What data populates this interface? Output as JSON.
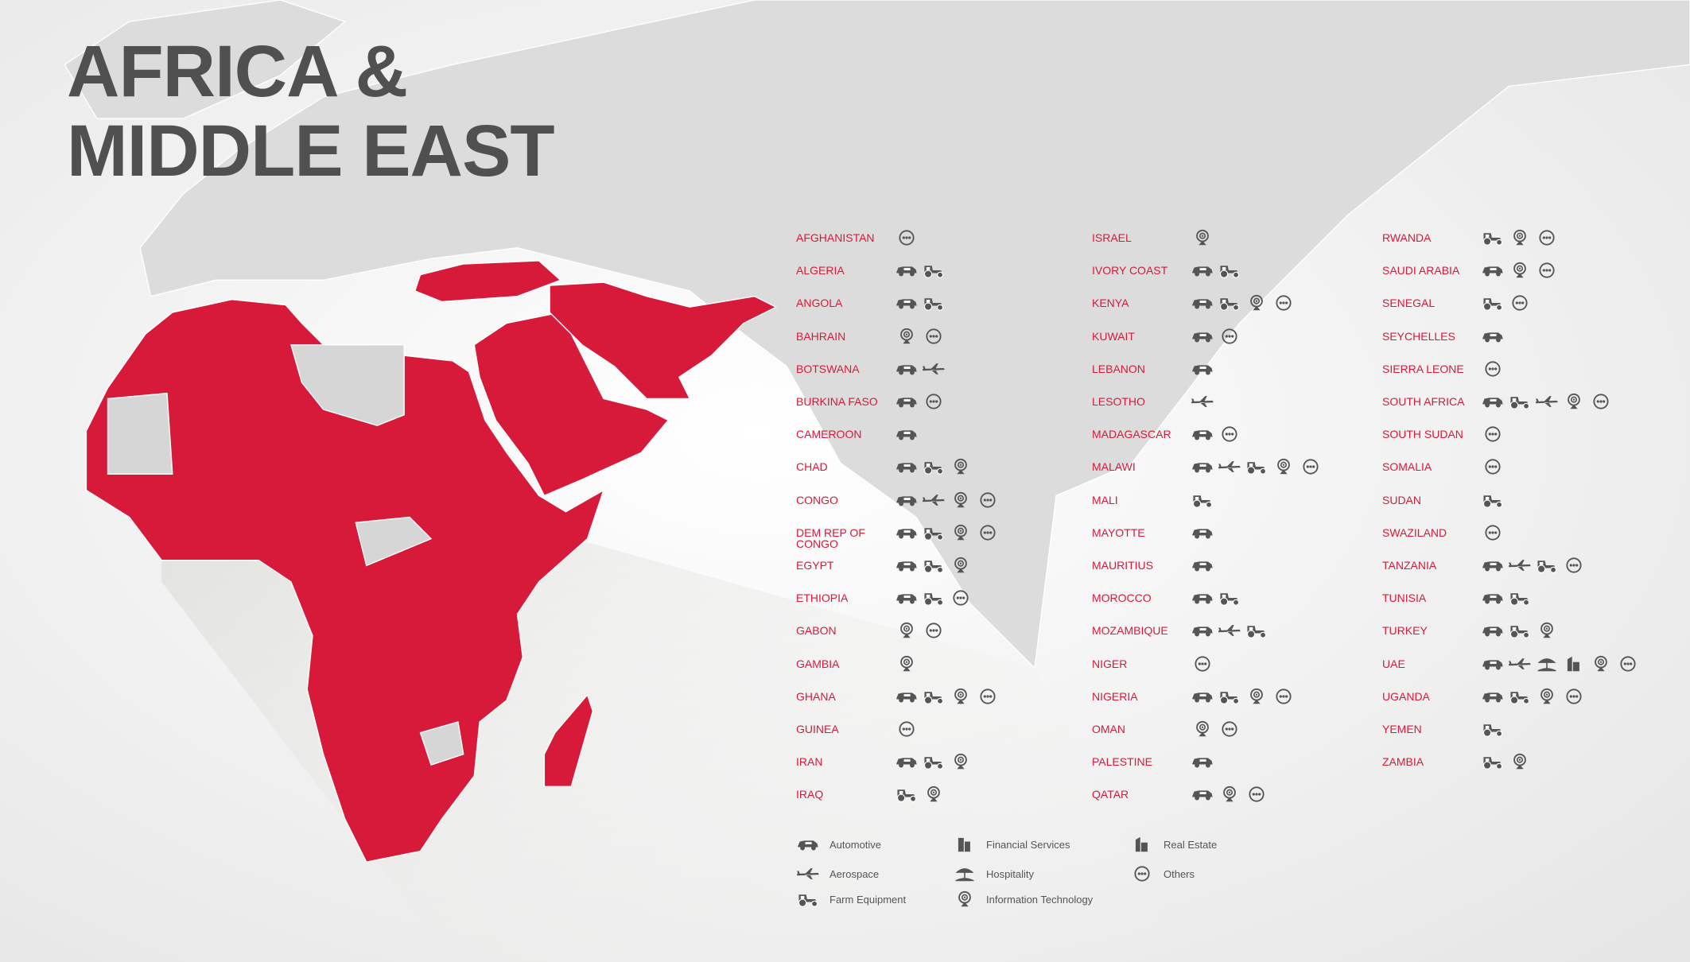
{
  "header": {
    "title_lines": [
      "AFRICA &",
      "MIDDLE EAST"
    ]
  },
  "legend": [
    "Automotive",
    "Aerospace",
    "Farm Equipment",
    "Financial Services",
    "Hospitality",
    "Information Technology",
    "Real Estate",
    "Others"
  ],
  "columns": [
    [
      {
        "name": "AFGHANISTAN",
        "sectors": [
          "Others"
        ]
      },
      {
        "name": "ALGERIA",
        "sectors": [
          "Automotive",
          "Farm Equipment"
        ]
      },
      {
        "name": "ANGOLA",
        "sectors": [
          "Automotive",
          "Farm Equipment"
        ]
      },
      {
        "name": "BAHRAIN",
        "sectors": [
          "Information Technology",
          "Others"
        ]
      },
      {
        "name": "BOTSWANA",
        "sectors": [
          "Automotive",
          "Aerospace"
        ]
      },
      {
        "name": "BURKINA FASO",
        "sectors": [
          "Automotive",
          "Others"
        ]
      },
      {
        "name": "CAMEROON",
        "sectors": [
          "Automotive"
        ]
      },
      {
        "name": "CHAD",
        "sectors": [
          "Automotive",
          "Farm Equipment",
          "Information Technology"
        ]
      },
      {
        "name": "CONGO",
        "sectors": [
          "Automotive",
          "Aerospace",
          "Information Technology",
          "Others"
        ]
      },
      {
        "name": "DEM REP OF CONGO",
        "sectors": [
          "Automotive",
          "Farm Equipment",
          "Information Technology",
          "Others"
        ]
      },
      {
        "name": "EGYPT",
        "sectors": [
          "Automotive",
          "Farm Equipment",
          "Information Technology"
        ]
      },
      {
        "name": "ETHIOPIA",
        "sectors": [
          "Automotive",
          "Farm Equipment",
          "Others"
        ]
      },
      {
        "name": "GABON",
        "sectors": [
          "Information Technology",
          "Others"
        ]
      },
      {
        "name": "GAMBIA",
        "sectors": [
          "Information Technology"
        ]
      },
      {
        "name": "GHANA",
        "sectors": [
          "Automotive",
          "Farm Equipment",
          "Information Technology",
          "Others"
        ]
      },
      {
        "name": "GUINEA",
        "sectors": [
          "Others"
        ]
      },
      {
        "name": "IRAN",
        "sectors": [
          "Automotive",
          "Farm Equipment",
          "Information Technology"
        ]
      },
      {
        "name": "IRAQ",
        "sectors": [
          "Farm Equipment",
          "Information Technology"
        ]
      }
    ],
    [
      {
        "name": "ISRAEL",
        "sectors": [
          "Information Technology"
        ]
      },
      {
        "name": "IVORY COAST",
        "sectors": [
          "Automotive",
          "Farm Equipment"
        ]
      },
      {
        "name": "KENYA",
        "sectors": [
          "Automotive",
          "Farm Equipment",
          "Information Technology",
          "Others"
        ]
      },
      {
        "name": "KUWAIT",
        "sectors": [
          "Automotive",
          "Others"
        ]
      },
      {
        "name": "LEBANON",
        "sectors": [
          "Automotive"
        ]
      },
      {
        "name": "LESOTHO",
        "sectors": [
          "Aerospace"
        ]
      },
      {
        "name": "MADAGASCAR",
        "sectors": [
          "Automotive",
          "Others"
        ]
      },
      {
        "name": "MALAWI",
        "sectors": [
          "Automotive",
          "Aerospace",
          "Farm Equipment",
          "Information Technology",
          "Others"
        ]
      },
      {
        "name": "MALI",
        "sectors": [
          "Farm Equipment"
        ]
      },
      {
        "name": "MAYOTTE",
        "sectors": [
          "Automotive"
        ]
      },
      {
        "name": "MAURITIUS",
        "sectors": [
          "Automotive"
        ]
      },
      {
        "name": "MOROCCO",
        "sectors": [
          "Automotive",
          "Farm Equipment"
        ]
      },
      {
        "name": "MOZAMBIQUE",
        "sectors": [
          "Automotive",
          "Aerospace",
          "Farm Equipment"
        ]
      },
      {
        "name": "NIGER",
        "sectors": [
          "Others"
        ]
      },
      {
        "name": "NIGERIA",
        "sectors": [
          "Automotive",
          "Farm Equipment",
          "Information Technology",
          "Others"
        ]
      },
      {
        "name": "OMAN",
        "sectors": [
          "Information Technology",
          "Others"
        ]
      },
      {
        "name": "PALESTINE",
        "sectors": [
          "Automotive"
        ]
      },
      {
        "name": "QATAR",
        "sectors": [
          "Automotive",
          "Information Technology",
          "Others"
        ]
      }
    ],
    [
      {
        "name": "RWANDA",
        "sectors": [
          "Farm Equipment",
          "Information Technology",
          "Others"
        ]
      },
      {
        "name": "SAUDI ARABIA",
        "sectors": [
          "Automotive",
          "Information Technology",
          "Others"
        ]
      },
      {
        "name": "SENEGAL",
        "sectors": [
          "Farm Equipment",
          "Others"
        ]
      },
      {
        "name": "SEYCHELLES",
        "sectors": [
          "Automotive"
        ]
      },
      {
        "name": "SIERRA LEONE",
        "sectors": [
          "Others"
        ]
      },
      {
        "name": "SOUTH AFRICA",
        "sectors": [
          "Automotive",
          "Farm Equipment",
          "Aerospace",
          "Information Technology",
          "Others"
        ]
      },
      {
        "name": "SOUTH SUDAN",
        "sectors": [
          "Others"
        ]
      },
      {
        "name": "SOMALIA",
        "sectors": [
          "Others"
        ]
      },
      {
        "name": "SUDAN",
        "sectors": [
          "Farm Equipment"
        ]
      },
      {
        "name": "SWAZILAND",
        "sectors": [
          "Others"
        ]
      },
      {
        "name": "TANZANIA",
        "sectors": [
          "Automotive",
          "Aerospace",
          "Farm Equipment",
          "Others"
        ]
      },
      {
        "name": "TUNISIA",
        "sectors": [
          "Automotive",
          "Farm Equipment"
        ]
      },
      {
        "name": "TURKEY",
        "sectors": [
          "Automotive",
          "Farm Equipment",
          "Information Technology"
        ]
      },
      {
        "name": "UAE",
        "sectors": [
          "Automotive",
          "Aerospace",
          "Hospitality",
          "Real Estate",
          "Information Technology",
          "Others"
        ]
      },
      {
        "name": "UGANDA",
        "sectors": [
          "Automotive",
          "Farm Equipment",
          "Information Technology",
          "Others"
        ]
      },
      {
        "name": "YEMEN",
        "sectors": [
          "Farm Equipment"
        ]
      },
      {
        "name": "ZAMBIA",
        "sectors": [
          "Farm Equipment",
          "Information Technology"
        ]
      }
    ]
  ]
}
